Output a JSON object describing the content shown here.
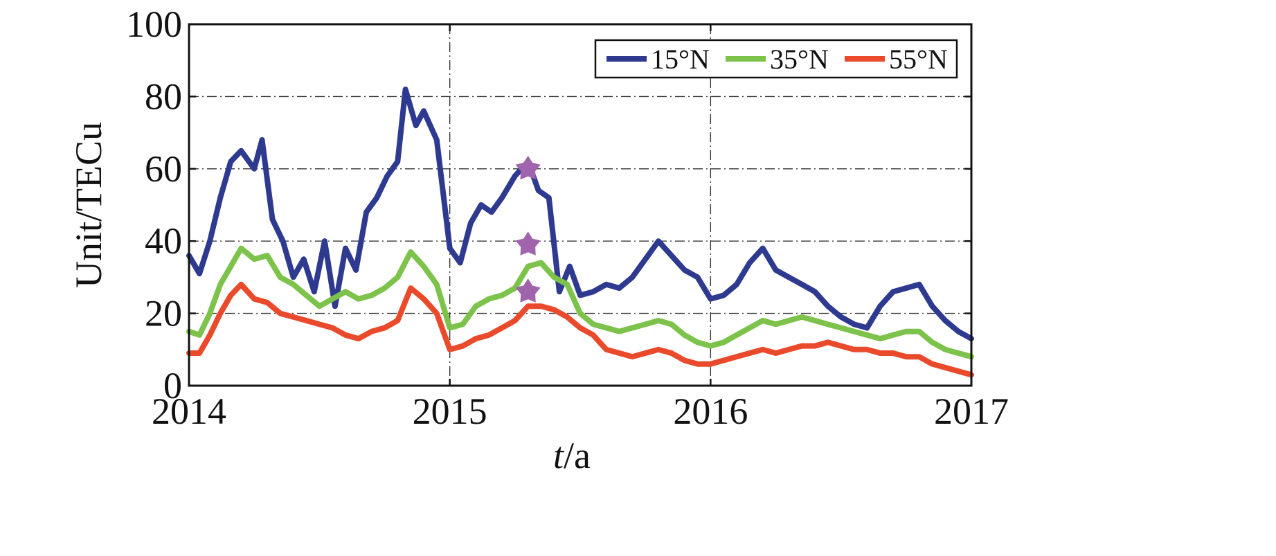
{
  "chart_data": {
    "type": "line",
    "title": "",
    "xlabel_italic": "t",
    "xlabel_rest": "/a",
    "ylabel": "Unit/TECu",
    "xlim": [
      2014,
      2017
    ],
    "ylim": [
      0,
      100
    ],
    "x_ticks": [
      "2014",
      "2015",
      "2016",
      "2017"
    ],
    "y_ticks": [
      "0",
      "20",
      "40",
      "60",
      "80",
      "100"
    ],
    "grid": true,
    "legend_position": "top-right",
    "series": [
      {
        "name": "15°N",
        "color": "#2e3a8f",
        "x": [
          2014.0,
          2014.04,
          2014.08,
          2014.12,
          2014.16,
          2014.2,
          2014.25,
          2014.28,
          2014.32,
          2014.36,
          2014.4,
          2014.44,
          2014.48,
          2014.52,
          2014.56,
          2014.6,
          2014.64,
          2014.68,
          2014.72,
          2014.76,
          2014.8,
          2014.83,
          2014.87,
          2014.9,
          2014.95,
          2015.0,
          2015.04,
          2015.08,
          2015.12,
          2015.16,
          2015.2,
          2015.25,
          2015.3,
          2015.34,
          2015.38,
          2015.42,
          2015.46,
          2015.5,
          2015.55,
          2015.6,
          2015.65,
          2015.7,
          2015.75,
          2015.8,
          2015.85,
          2015.9,
          2015.95,
          2016.0,
          2016.05,
          2016.1,
          2016.15,
          2016.2,
          2016.25,
          2016.3,
          2016.35,
          2016.4,
          2016.45,
          2016.5,
          2016.55,
          2016.6,
          2016.65,
          2016.7,
          2016.75,
          2016.8,
          2016.85,
          2016.9,
          2016.95,
          2017.0
        ],
        "values": [
          36,
          31,
          40,
          52,
          62,
          65,
          60,
          68,
          46,
          40,
          30,
          35,
          26,
          40,
          22,
          38,
          32,
          48,
          52,
          58,
          62,
          82,
          72,
          76,
          68,
          38,
          34,
          45,
          50,
          48,
          52,
          58,
          62,
          54,
          52,
          26,
          33,
          25,
          26,
          28,
          27,
          30,
          35,
          40,
          36,
          32,
          30,
          24,
          25,
          28,
          34,
          38,
          32,
          30,
          28,
          26,
          22,
          19,
          17,
          16,
          22,
          26,
          27,
          28,
          22,
          18,
          15,
          13
        ]
      },
      {
        "name": "35°N",
        "color": "#7dc24b",
        "x": [
          2014.0,
          2014.04,
          2014.08,
          2014.12,
          2014.16,
          2014.2,
          2014.25,
          2014.3,
          2014.35,
          2014.4,
          2014.45,
          2014.5,
          2014.55,
          2014.6,
          2014.65,
          2014.7,
          2014.75,
          2014.8,
          2014.85,
          2014.9,
          2014.95,
          2015.0,
          2015.05,
          2015.1,
          2015.15,
          2015.2,
          2015.25,
          2015.3,
          2015.35,
          2015.4,
          2015.45,
          2015.5,
          2015.55,
          2015.6,
          2015.65,
          2015.7,
          2015.75,
          2015.8,
          2015.85,
          2015.9,
          2015.95,
          2016.0,
          2016.05,
          2016.1,
          2016.15,
          2016.2,
          2016.25,
          2016.3,
          2016.35,
          2016.4,
          2016.45,
          2016.5,
          2016.55,
          2016.6,
          2016.65,
          2016.7,
          2016.75,
          2016.8,
          2016.85,
          2016.9,
          2016.95,
          2017.0
        ],
        "values": [
          15,
          14,
          20,
          28,
          33,
          38,
          35,
          36,
          30,
          28,
          25,
          22,
          24,
          26,
          24,
          25,
          27,
          30,
          37,
          33,
          28,
          16,
          17,
          22,
          24,
          25,
          27,
          33,
          34,
          30,
          28,
          20,
          17,
          16,
          15,
          16,
          17,
          18,
          17,
          14,
          12,
          11,
          12,
          14,
          16,
          18,
          17,
          18,
          19,
          18,
          17,
          16,
          15,
          14,
          13,
          14,
          15,
          15,
          12,
          10,
          9,
          8
        ]
      },
      {
        "name": "55°N",
        "color": "#ea4a2c",
        "x": [
          2014.0,
          2014.04,
          2014.08,
          2014.12,
          2014.16,
          2014.2,
          2014.25,
          2014.3,
          2014.35,
          2014.4,
          2014.45,
          2014.5,
          2014.55,
          2014.6,
          2014.65,
          2014.7,
          2014.75,
          2014.8,
          2014.85,
          2014.9,
          2014.95,
          2015.0,
          2015.05,
          2015.1,
          2015.15,
          2015.2,
          2015.25,
          2015.3,
          2015.35,
          2015.4,
          2015.45,
          2015.5,
          2015.55,
          2015.6,
          2015.65,
          2015.7,
          2015.75,
          2015.8,
          2015.85,
          2015.9,
          2015.95,
          2016.0,
          2016.05,
          2016.1,
          2016.15,
          2016.2,
          2016.25,
          2016.3,
          2016.35,
          2016.4,
          2016.45,
          2016.5,
          2016.55,
          2016.6,
          2016.65,
          2016.7,
          2016.75,
          2016.8,
          2016.85,
          2016.9,
          2016.95,
          2017.0
        ],
        "values": [
          9,
          9,
          14,
          20,
          25,
          28,
          24,
          23,
          20,
          19,
          18,
          17,
          16,
          14,
          13,
          15,
          16,
          18,
          27,
          24,
          20,
          10,
          11,
          13,
          14,
          16,
          18,
          22,
          22,
          21,
          19,
          16,
          14,
          10,
          9,
          8,
          9,
          10,
          9,
          7,
          6,
          6,
          7,
          8,
          9,
          10,
          9,
          10,
          11,
          11,
          12,
          11,
          10,
          10,
          9,
          9,
          8,
          8,
          6,
          5,
          4,
          3
        ]
      }
    ],
    "markers": {
      "color": "#a064ad",
      "shape": "star",
      "points": [
        {
          "x": 2015.3,
          "y": 60
        },
        {
          "x": 2015.3,
          "y": 39
        },
        {
          "x": 2015.3,
          "y": 26
        }
      ]
    }
  }
}
